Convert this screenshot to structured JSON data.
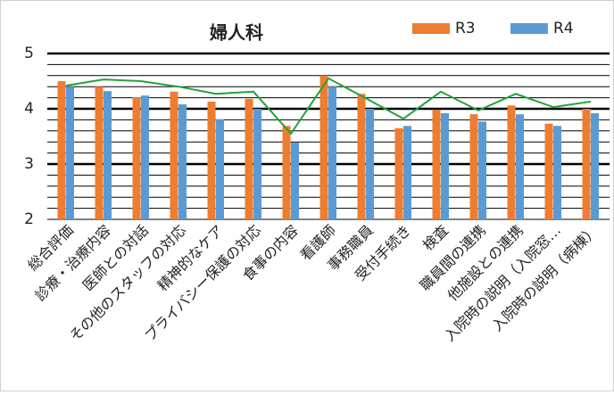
{
  "chart_data": {
    "type": "bar",
    "title": "婦人科",
    "categories": [
      "総合評価",
      "診療・治療内容",
      "医師との対話",
      "その他のスタッフの対応",
      "精神的なケア",
      "プライバシー保護の対応",
      "食事の内容",
      "看護師",
      "事務職員",
      "受付手続き",
      "検査",
      "職員間の連携",
      "他施設との連携",
      "入院時の説明（入院窓…",
      "入院時の説明（病棟）"
    ],
    "series": [
      {
        "name": "R3",
        "color": "#ed7d31",
        "values": [
          4.5,
          4.4,
          4.21,
          4.31,
          4.13,
          4.18,
          3.69,
          4.6,
          4.27,
          3.65,
          3.98,
          3.9,
          4.06,
          3.73,
          4.0
        ]
      },
      {
        "name": "R4",
        "color": "#5b9bd5",
        "values": [
          4.4,
          4.32,
          4.24,
          4.08,
          3.81,
          4.0,
          3.39,
          4.4,
          4.0,
          3.69,
          3.92,
          3.77,
          3.9,
          3.69,
          3.92
        ]
      },
      {
        "type": "line",
        "color": "#22a33a",
        "values": [
          4.42,
          4.53,
          4.5,
          4.4,
          4.27,
          4.31,
          3.55,
          4.55,
          4.19,
          3.82,
          4.31,
          3.97,
          4.27,
          4.03,
          4.13
        ]
      }
    ],
    "ylim": [
      2,
      5
    ],
    "yticks": [
      2,
      3,
      4,
      5
    ],
    "minor_yticks": [
      2.2,
      2.4,
      2.6,
      2.8,
      3.2,
      3.4,
      3.6,
      3.8,
      4.2,
      4.4,
      4.6,
      4.8
    ],
    "grid": true,
    "legend": "top-right"
  }
}
